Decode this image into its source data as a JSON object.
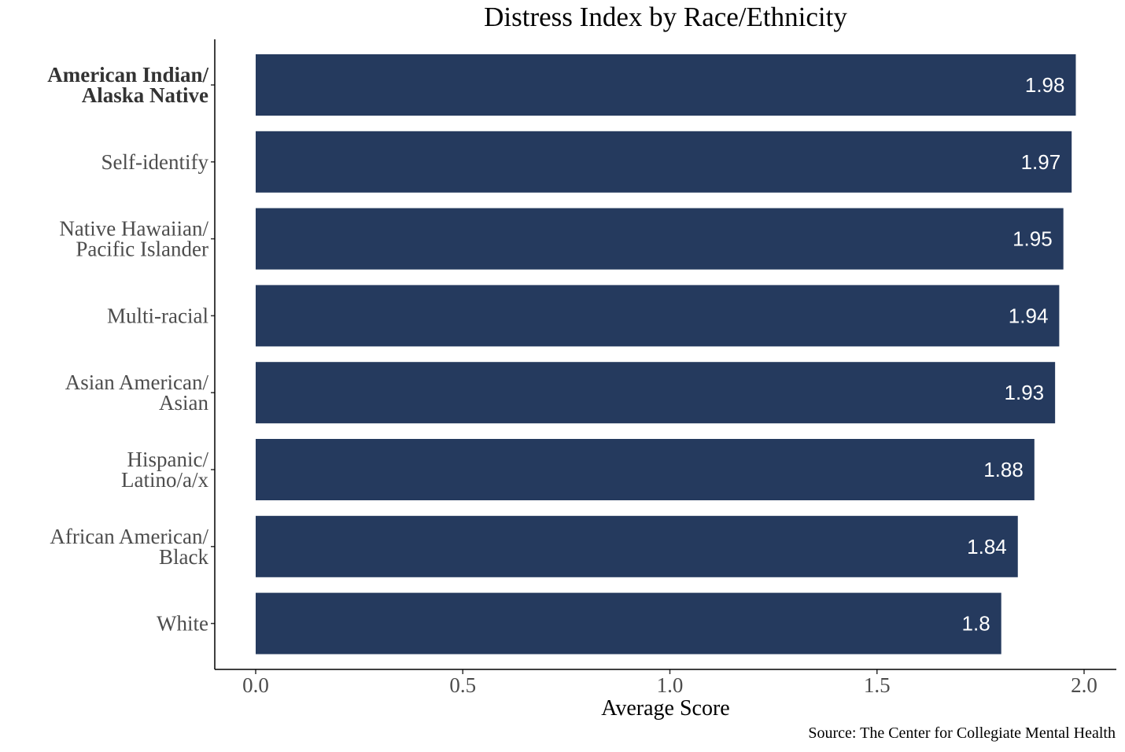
{
  "chart_data": {
    "type": "bar",
    "orientation": "horizontal",
    "title": "Distress Index by Race/Ethnicity",
    "xlabel": "Average Score",
    "ylabel": "",
    "source": "Source: The Center for Collegiate Mental Health",
    "xlim": [
      0,
      2.0
    ],
    "xticks": [
      "0.0",
      "0.5",
      "1.0",
      "1.5",
      "2.0"
    ],
    "grid": false,
    "bar_color": "#253a5e",
    "categories": [
      {
        "lines": [
          "American Indian/",
          "Alaska Native"
        ],
        "bold": true
      },
      {
        "lines": [
          "Self-identify"
        ],
        "bold": false
      },
      {
        "lines": [
          "Native Hawaiian/",
          "Pacific Islander"
        ],
        "bold": false
      },
      {
        "lines": [
          "Multi-racial"
        ],
        "bold": false
      },
      {
        "lines": [
          "Asian American/",
          "Asian"
        ],
        "bold": false
      },
      {
        "lines": [
          "Hispanic/",
          "Latino/a/x"
        ],
        "bold": false
      },
      {
        "lines": [
          "African American/",
          "Black"
        ],
        "bold": false
      },
      {
        "lines": [
          "White"
        ],
        "bold": false
      }
    ],
    "values": [
      1.98,
      1.97,
      1.95,
      1.94,
      1.93,
      1.88,
      1.84,
      1.8
    ],
    "value_labels": [
      "1.98",
      "1.97",
      "1.95",
      "1.94",
      "1.93",
      "1.88",
      "1.84",
      "1.8"
    ]
  }
}
